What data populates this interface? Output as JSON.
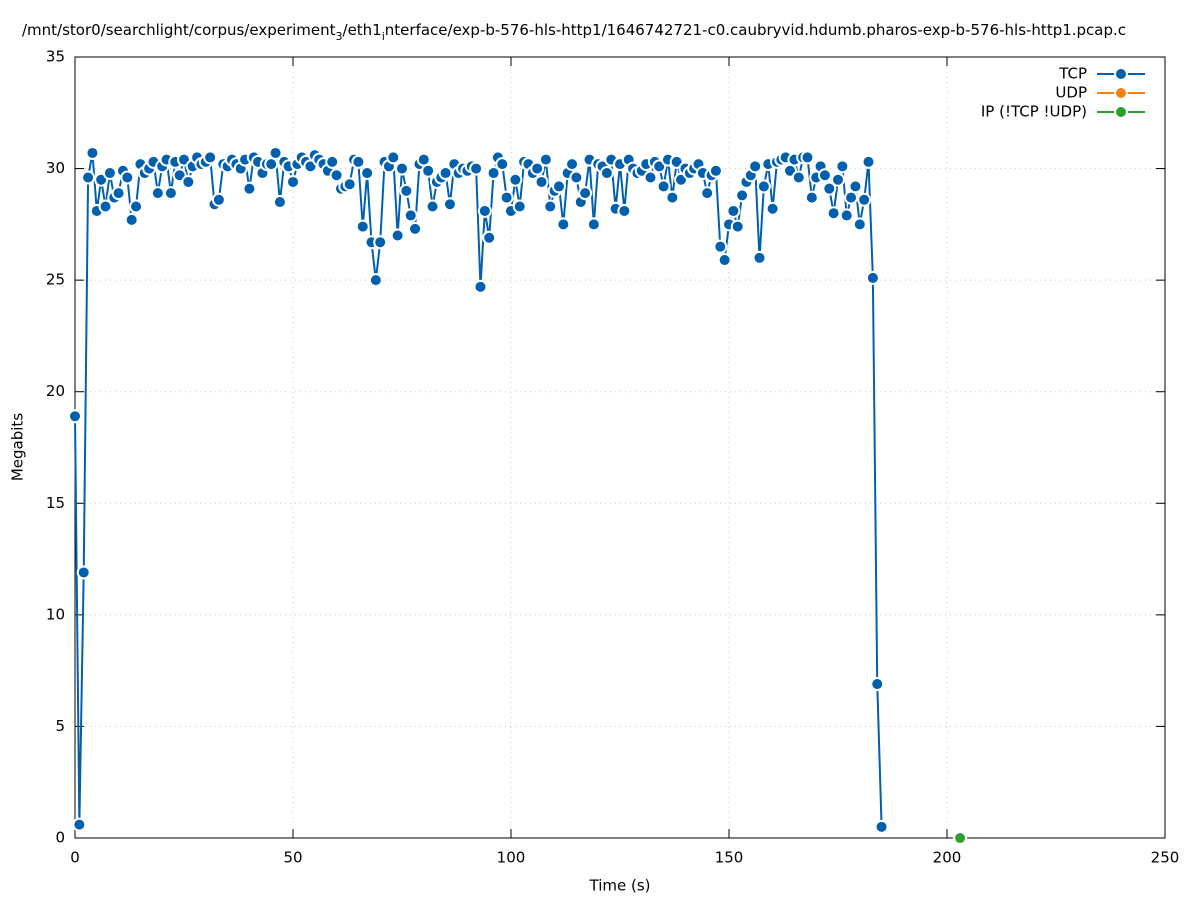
{
  "chart_data": {
    "type": "line",
    "title_parts": [
      {
        "text": "/mnt/stor0/searchlight/corpus/experiment"
      },
      {
        "text": "3",
        "sub": true
      },
      {
        "text": "/eth1"
      },
      {
        "text": "i",
        "sub": true
      },
      {
        "text": "nterface/exp-b-576-hls-http1/1646742721-c0.caubryvid.hdumb.pharos-exp-b-576-hls-http1.pcap.c"
      }
    ],
    "xlabel": "Time (s)",
    "ylabel": "Megabits",
    "xlim": [
      0,
      250
    ],
    "xticks": [
      0,
      50,
      100,
      150,
      200,
      250
    ],
    "ylim": [
      0,
      35
    ],
    "yticks": [
      0,
      5,
      10,
      15,
      20,
      25,
      30,
      35
    ],
    "grid": true,
    "legend": "top-right",
    "series": [
      {
        "name": "TCP",
        "color": "#0060ad",
        "x": [
          0,
          1,
          2,
          3,
          4,
          5,
          6,
          7,
          8,
          9,
          10,
          11,
          12,
          13,
          14,
          15,
          16,
          17,
          18,
          19,
          20,
          21,
          22,
          23,
          24,
          25,
          26,
          27,
          28,
          29,
          30,
          31,
          32,
          33,
          34,
          35,
          36,
          37,
          38,
          39,
          40,
          41,
          42,
          43,
          44,
          45,
          46,
          47,
          48,
          49,
          50,
          51,
          52,
          53,
          54,
          55,
          56,
          57,
          58,
          59,
          60,
          61,
          62,
          63,
          64,
          65,
          66,
          67,
          68,
          69,
          70,
          71,
          72,
          73,
          74,
          75,
          76,
          77,
          78,
          79,
          80,
          81,
          82,
          83,
          84,
          85,
          86,
          87,
          88,
          89,
          90,
          91,
          92,
          93,
          94,
          95,
          96,
          97,
          98,
          99,
          100,
          101,
          102,
          103,
          104,
          105,
          106,
          107,
          108,
          109,
          110,
          111,
          112,
          113,
          114,
          115,
          116,
          117,
          118,
          119,
          120,
          121,
          122,
          123,
          124,
          125,
          126,
          127,
          128,
          129,
          130,
          131,
          132,
          133,
          134,
          135,
          136,
          137,
          138,
          139,
          140,
          141,
          142,
          143,
          144,
          145,
          146,
          147,
          148,
          149,
          150,
          151,
          152,
          153,
          154,
          155,
          156,
          157,
          158,
          159,
          160,
          161,
          162,
          163,
          164,
          165,
          166,
          167,
          168,
          169,
          170,
          171,
          172,
          173,
          174,
          175,
          176,
          177,
          178,
          179,
          180,
          181,
          182,
          183,
          184,
          185
        ],
        "values": [
          18.9,
          0.6,
          11.9,
          29.6,
          30.7,
          28.1,
          29.5,
          28.3,
          29.8,
          28.7,
          28.9,
          29.9,
          29.6,
          27.7,
          28.3,
          30.2,
          29.8,
          30.0,
          30.3,
          28.9,
          30.1,
          30.4,
          28.9,
          30.3,
          29.7,
          30.4,
          29.4,
          30.1,
          30.5,
          30.2,
          30.3,
          30.5,
          28.4,
          28.6,
          30.2,
          30.1,
          30.4,
          30.2,
          30.0,
          30.4,
          29.1,
          30.5,
          30.3,
          29.8,
          30.2,
          30.2,
          30.7,
          28.5,
          30.3,
          30.1,
          29.4,
          30.2,
          30.5,
          30.3,
          30.1,
          30.6,
          30.4,
          30.2,
          29.9,
          30.3,
          29.7,
          29.1,
          29.2,
          29.3,
          30.4,
          30.3,
          27.4,
          29.8,
          26.7,
          25.0,
          26.7,
          30.3,
          30.1,
          30.5,
          27.0,
          30.0,
          29.0,
          27.9,
          27.3,
          30.2,
          30.4,
          29.9,
          28.3,
          29.4,
          29.6,
          29.8,
          28.4,
          30.2,
          29.8,
          30.0,
          29.9,
          30.1,
          30.0,
          24.7,
          28.1,
          26.9,
          29.8,
          30.5,
          30.2,
          28.7,
          28.1,
          29.5,
          28.3,
          30.3,
          30.2,
          29.8,
          30.0,
          29.4,
          30.4,
          28.3,
          29.0,
          29.2,
          27.5,
          29.8,
          30.2,
          29.6,
          28.5,
          28.9,
          30.4,
          27.5,
          30.2,
          30.1,
          29.8,
          30.4,
          28.2,
          30.2,
          28.1,
          30.4,
          30.0,
          29.8,
          29.9,
          30.2,
          29.6,
          30.3,
          30.1,
          29.2,
          30.4,
          28.7,
          30.3,
          29.5,
          30.0,
          29.8,
          30.0,
          30.2,
          29.8,
          28.9,
          29.7,
          29.9,
          26.5,
          25.9,
          27.5,
          28.1,
          27.4,
          28.8,
          29.4,
          29.7,
          30.1,
          26.0,
          29.2,
          30.2,
          28.2,
          30.3,
          30.4,
          30.5,
          29.9,
          30.4,
          29.6,
          30.5,
          30.5,
          28.7,
          29.6,
          30.1,
          29.7,
          29.1,
          28.0,
          29.5,
          30.1,
          27.9,
          28.7,
          29.2,
          27.5,
          28.6,
          30.3,
          25.1,
          6.9,
          0.5
        ]
      },
      {
        "name": "UDP",
        "color": "#ff7f0e",
        "x": [],
        "values": []
      },
      {
        "name": "IP (!TCP  !UDP)",
        "color": "#2ca02c",
        "x": [
          203
        ],
        "values": [
          0
        ]
      }
    ]
  }
}
